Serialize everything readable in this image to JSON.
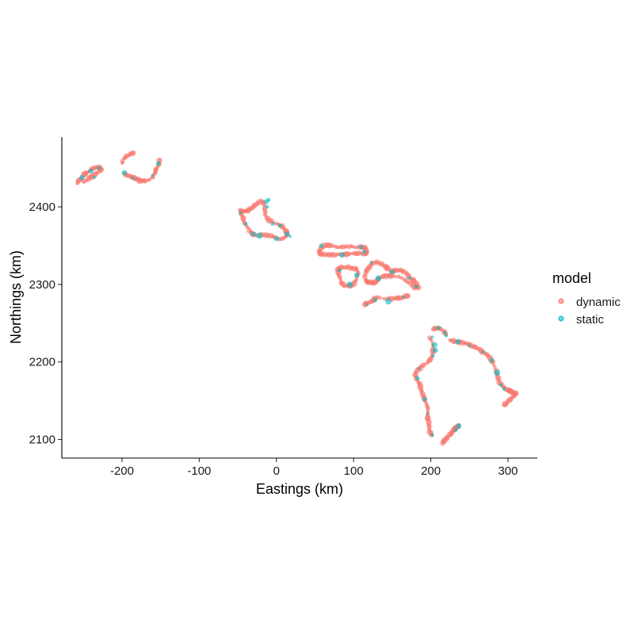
{
  "chart_data": {
    "type": "scatter",
    "xlabel": "Eastings (km)",
    "ylabel": "Northings (km)",
    "xlim": [
      -278,
      338
    ],
    "ylim": [
      2076,
      2490
    ],
    "x_ticks": [
      -200,
      -100,
      0,
      100,
      200,
      300
    ],
    "x_tick_labels": [
      "-200",
      "-100",
      "0",
      "100",
      "200",
      "300"
    ],
    "y_ticks": [
      2100,
      2200,
      2300,
      2400
    ],
    "y_tick_labels": [
      "2100",
      "2200",
      "2300",
      "2400"
    ],
    "grid": false,
    "legend": {
      "title": "model",
      "position": "right",
      "entries": [
        "dynamic",
        "static"
      ]
    },
    "colors": {
      "dynamic": "#F8766D",
      "static": "#00BFC4"
    },
    "series": [
      {
        "name": "dynamic",
        "islands": [
          {
            "closed": false,
            "points": [
              [
                -258,
                2430
              ],
              [
                -255,
                2435
              ],
              [
                -250,
                2440
              ],
              [
                -246,
                2444
              ],
              [
                -242,
                2447
              ],
              [
                -238,
                2450
              ],
              [
                -233,
                2451
              ],
              [
                -229,
                2451
              ],
              [
                -227,
                2448
              ],
              [
                -232,
                2444
              ],
              [
                -238,
                2440
              ],
              [
                -244,
                2436
              ],
              [
                -250,
                2432
              ]
            ]
          },
          {
            "closed": false,
            "points": [
              [
                -200,
                2456
              ],
              [
                -198,
                2462
              ],
              [
                -194,
                2466
              ],
              [
                -189,
                2468
              ],
              [
                -185,
                2470
              ]
            ]
          },
          {
            "closed": false,
            "points": [
              [
                -197,
                2443
              ],
              [
                -192,
                2441
              ],
              [
                -187,
                2438
              ],
              [
                -182,
                2436
              ],
              [
                -177,
                2434
              ],
              [
                -171,
                2433
              ],
              [
                -165,
                2435
              ],
              [
                -160,
                2439
              ],
              [
                -157,
                2445
              ],
              [
                -155,
                2450
              ],
              [
                -152,
                2456
              ],
              [
                -151,
                2461
              ]
            ]
          },
          {
            "closed": true,
            "points": [
              [
                -47,
                2396
              ],
              [
                -42,
                2394
              ],
              [
                -37,
                2395
              ],
              [
                -33,
                2398
              ],
              [
                -29,
                2401
              ],
              [
                -24,
                2405
              ],
              [
                -19,
                2408
              ],
              [
                -16,
                2404
              ],
              [
                -15,
                2397
              ],
              [
                -14,
                2390
              ],
              [
                -11,
                2384
              ],
              [
                -5,
                2380
              ],
              [
                1,
                2378
              ],
              [
                6,
                2376
              ],
              [
                10,
                2373
              ],
              [
                13,
                2368
              ],
              [
                14,
                2363
              ],
              [
                10,
                2360
              ],
              [
                4,
                2359
              ],
              [
                -3,
                2361
              ],
              [
                -10,
                2363
              ],
              [
                -18,
                2364
              ],
              [
                -26,
                2363
              ],
              [
                -32,
                2366
              ],
              [
                -36,
                2372
              ],
              [
                -40,
                2378
              ],
              [
                -43,
                2384
              ],
              [
                -45,
                2390
              ]
            ]
          },
          {
            "closed": true,
            "points": [
              [
                55,
                2343
              ],
              [
                60,
                2349
              ],
              [
                66,
                2351
              ],
              [
                73,
                2349
              ],
              [
                80,
                2348
              ],
              [
                87,
                2349
              ],
              [
                94,
                2349
              ],
              [
                101,
                2348
              ],
              [
                108,
                2348
              ],
              [
                115,
                2347
              ],
              [
                117,
                2343
              ],
              [
                116,
                2339
              ],
              [
                110,
                2340
              ],
              [
                103,
                2340
              ],
              [
                96,
                2340
              ],
              [
                89,
                2339
              ],
              [
                82,
                2339
              ],
              [
                75,
                2338
              ],
              [
                68,
                2338
              ],
              [
                62,
                2339
              ],
              [
                57,
                2339
              ]
            ]
          },
          {
            "closed": true,
            "points": [
              [
                80,
                2320
              ],
              [
                86,
                2322
              ],
              [
                93,
                2322
              ],
              [
                99,
                2321
              ],
              [
                104,
                2320
              ],
              [
                106,
                2314
              ],
              [
                104,
                2307
              ],
              [
                100,
                2301
              ],
              [
                94,
                2298
              ],
              [
                88,
                2298
              ],
              [
                84,
                2303
              ],
              [
                82,
                2309
              ],
              [
                80,
                2315
              ]
            ]
          },
          {
            "closed": false,
            "points": [
              [
                114,
                2310
              ],
              [
                117,
                2317
              ],
              [
                120,
                2322
              ],
              [
                124,
                2327
              ],
              [
                130,
                2329
              ],
              [
                136,
                2327
              ],
              [
                142,
                2322
              ],
              [
                147,
                2318
              ],
              [
                152,
                2317
              ],
              [
                157,
                2318
              ],
              [
                162,
                2318
              ],
              [
                168,
                2315
              ],
              [
                173,
                2310
              ],
              [
                177,
                2305
              ],
              [
                181,
                2301
              ],
              [
                184,
                2296
              ],
              [
                180,
                2295
              ],
              [
                174,
                2300
              ],
              [
                168,
                2305
              ],
              [
                161,
                2309
              ],
              [
                153,
                2311
              ],
              [
                146,
                2311
              ],
              [
                140,
                2311
              ],
              [
                135,
                2309
              ],
              [
                131,
                2306
              ],
              [
                128,
                2302
              ],
              [
                123,
                2302
              ],
              [
                118,
                2303
              ],
              [
                115,
                2306
              ]
            ]
          },
          {
            "closed": false,
            "points": [
              [
                114,
                2274
              ],
              [
                118,
                2276
              ],
              [
                123,
                2278
              ],
              [
                127,
                2281
              ],
              [
                131,
                2283
              ],
              [
                142,
                2281
              ],
              [
                148,
                2282
              ],
              [
                154,
                2282
              ],
              [
                160,
                2283
              ],
              [
                166,
                2284
              ],
              [
                171,
                2285
              ]
            ]
          },
          {
            "closed": false,
            "points": [
              [
                198,
                2232
              ],
              [
                201,
                2226
              ],
              [
                203,
                2220
              ],
              [
                203,
                2213
              ],
              [
                201,
                2206
              ],
              [
                197,
                2200
              ],
              [
                191,
                2196
              ],
              [
                186,
                2192
              ],
              [
                181,
                2188
              ],
              [
                180,
                2182
              ],
              [
                183,
                2176
              ],
              [
                186,
                2170
              ],
              [
                188,
                2163
              ],
              [
                190,
                2157
              ],
              [
                192,
                2151
              ],
              [
                195,
                2145
              ],
              [
                196,
                2138
              ],
              [
                196,
                2131
              ],
              [
                197,
                2124
              ],
              [
                198,
                2117
              ],
              [
                199,
                2110
              ],
              [
                202,
                2105
              ]
            ]
          },
          {
            "closed": false,
            "points": [
              [
                203,
                2243
              ],
              [
                208,
                2244
              ],
              [
                213,
                2242
              ],
              [
                218,
                2239
              ],
              [
                220,
                2235
              ]
            ]
          },
          {
            "closed": false,
            "points": [
              [
                225,
                2228
              ],
              [
                231,
                2227
              ],
              [
                237,
                2226
              ],
              [
                243,
                2224
              ],
              [
                248,
                2223
              ],
              [
                254,
                2220
              ],
              [
                260,
                2218
              ],
              [
                266,
                2214
              ],
              [
                272,
                2210
              ],
              [
                277,
                2205
              ],
              [
                281,
                2198
              ],
              [
                284,
                2190
              ],
              [
                286,
                2183
              ],
              [
                288,
                2176
              ],
              [
                292,
                2170
              ],
              [
                296,
                2166
              ],
              [
                301,
                2163
              ],
              [
                306,
                2161
              ],
              [
                310,
                2159
              ],
              [
                308,
                2156
              ],
              [
                303,
                2152
              ],
              [
                299,
                2148
              ],
              [
                295,
                2144
              ]
            ]
          },
          {
            "closed": false,
            "points": [
              [
                215,
                2095
              ],
              [
                218,
                2099
              ],
              [
                221,
                2103
              ],
              [
                225,
                2107
              ],
              [
                228,
                2110
              ],
              [
                231,
                2113
              ],
              [
                234,
                2116
              ],
              [
                237,
                2119
              ]
            ]
          }
        ]
      },
      {
        "name": "static",
        "points": [
          [
            -252,
            2438
          ],
          [
            -240,
            2446
          ],
          [
            -230,
            2450
          ],
          [
            -236,
            2438
          ],
          [
            -197,
            2444
          ],
          [
            -186,
            2437
          ],
          [
            -160,
            2440
          ],
          [
            -153,
            2456
          ],
          [
            -47,
            2392
          ],
          [
            -30,
            2365
          ],
          [
            -13,
            2407
          ],
          [
            -10,
            2409
          ],
          [
            -12,
            2400
          ],
          [
            -5,
            2378
          ],
          [
            5,
            2376
          ],
          [
            14,
            2365
          ],
          [
            18,
            2362
          ],
          [
            0,
            2359
          ],
          [
            -22,
            2363
          ],
          [
            -40,
            2378
          ],
          [
            58,
            2350
          ],
          [
            85,
            2338
          ],
          [
            110,
            2348
          ],
          [
            114,
            2342
          ],
          [
            82,
            2318
          ],
          [
            95,
            2300
          ],
          [
            104,
            2312
          ],
          [
            123,
            2328
          ],
          [
            145,
            2278
          ],
          [
            132,
            2308
          ],
          [
            150,
            2316
          ],
          [
            172,
            2308
          ],
          [
            181,
            2297
          ],
          [
            165,
            2284
          ],
          [
            118,
            2274
          ],
          [
            128,
            2280
          ],
          [
            202,
            2232
          ],
          [
            205,
            2222
          ],
          [
            206,
            2215
          ],
          [
            203,
            2208
          ],
          [
            185,
            2192
          ],
          [
            183,
            2179
          ],
          [
            192,
            2152
          ],
          [
            196,
            2133
          ],
          [
            202,
            2106
          ],
          [
            210,
            2244
          ],
          [
            218,
            2238
          ],
          [
            220,
            2234
          ],
          [
            235,
            2226
          ],
          [
            250,
            2221
          ],
          [
            268,
            2213
          ],
          [
            279,
            2202
          ],
          [
            286,
            2186
          ],
          [
            291,
            2170
          ],
          [
            295,
            2165
          ],
          [
            232,
            2112
          ],
          [
            236,
            2117
          ]
        ]
      }
    ]
  }
}
